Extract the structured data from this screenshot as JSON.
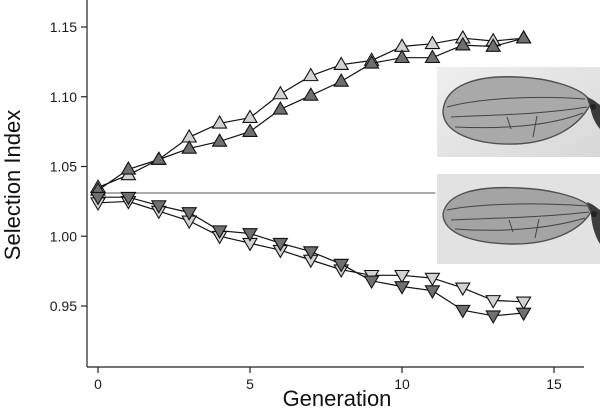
{
  "chart_data": {
    "type": "line",
    "title": "",
    "xlabel": "Generation",
    "ylabel": "Selection Index",
    "xlim": [
      -0.5,
      16
    ],
    "ylim": [
      0.925,
      1.17
    ],
    "x_ticks": [
      0,
      5,
      10,
      15
    ],
    "y_ticks": [
      0.95,
      1.0,
      1.05,
      1.1,
      1.15
    ],
    "x_tick_labels": [
      "0",
      "5",
      "10",
      "15"
    ],
    "y_tick_labels": [
      "0.95",
      "1.00",
      "1.05",
      "1.10",
      "1.15"
    ],
    "grid": false,
    "legend": "none",
    "reference_line": {
      "y": 1.031,
      "x_start": 0,
      "x_end": 11.1
    },
    "series": [
      {
        "marker": "triangle-up",
        "fill": "#d2d2d2",
        "x": [
          0,
          1,
          2,
          3,
          4,
          5,
          6,
          7,
          8,
          9,
          10,
          11,
          12,
          13,
          14
        ],
        "y": [
          1.035,
          1.044,
          1.055,
          1.071,
          1.081,
          1.085,
          1.102,
          1.115,
          1.123,
          1.126,
          1.136,
          1.138,
          1.142,
          1.14,
          1.142
        ]
      },
      {
        "marker": "triangle-up",
        "fill": "#6f6f6f",
        "x": [
          0,
          1,
          2,
          3,
          4,
          5,
          6,
          7,
          8,
          9,
          10,
          11,
          12,
          13,
          14
        ],
        "y": [
          1.033,
          1.048,
          1.055,
          1.063,
          1.068,
          1.075,
          1.091,
          1.101,
          1.111,
          1.124,
          1.128,
          1.128,
          1.137,
          1.136,
          1.142
        ]
      },
      {
        "marker": "triangle-down",
        "fill": "#d2d2d2",
        "x": [
          0,
          1,
          2,
          3,
          4,
          5,
          6,
          7,
          8,
          9,
          10,
          11,
          12,
          13,
          14
        ],
        "y": [
          1.024,
          1.025,
          1.018,
          1.011,
          1.0,
          0.995,
          0.99,
          0.983,
          0.976,
          0.972,
          0.972,
          0.97,
          0.963,
          0.954,
          0.953
        ]
      },
      {
        "marker": "triangle-down",
        "fill": "#6f6f6f",
        "x": [
          0,
          1,
          2,
          3,
          4,
          5,
          6,
          7,
          8,
          9,
          10,
          11,
          12,
          13,
          14
        ],
        "y": [
          1.028,
          1.028,
          1.022,
          1.017,
          1.004,
          1.002,
          0.995,
          0.989,
          0.98,
          0.968,
          0.964,
          0.961,
          0.947,
          0.943,
          0.945
        ]
      }
    ]
  }
}
